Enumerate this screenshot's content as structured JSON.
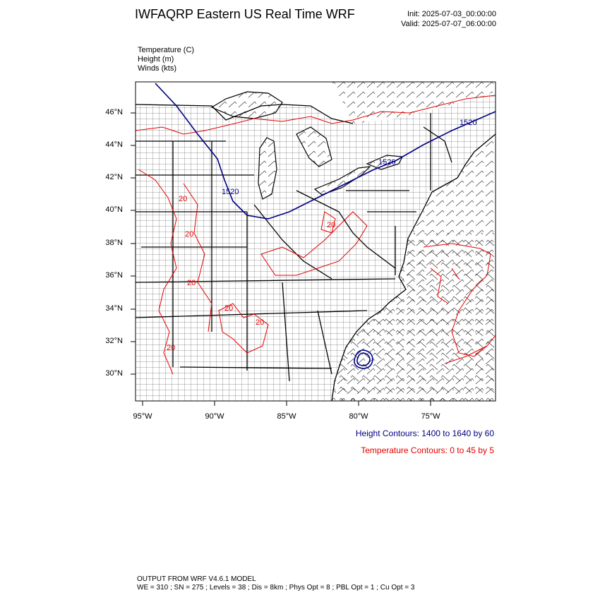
{
  "header": {
    "title": "IWFAQRP Eastern US Real Time WRF",
    "init": "Init: 2025-07-03_00:00:00",
    "valid": "Valid: 2025-07-07_06:00:00"
  },
  "fields": {
    "temperature": "Temperature   (C)",
    "height": "Height   (m)",
    "winds": "Winds   (kts)"
  },
  "axes": {
    "lat_labels": [
      "46°N",
      "44°N",
      "42°N",
      "40°N",
      "38°N",
      "36°N",
      "34°N",
      "32°N",
      "30°N"
    ],
    "lon_labels": [
      "95°W",
      "90°W",
      "85°W",
      "80°W",
      "75°W"
    ]
  },
  "contour_labels": {
    "height": [
      "1520",
      "1520",
      "1520"
    ],
    "temperature": [
      "20",
      "20",
      "20",
      "20",
      "20",
      "20",
      "20"
    ]
  },
  "legend": {
    "height": "Height Contours: 1400 to 1640 by 60",
    "temperature": "Temperature Contours: 0 to 45 by 5"
  },
  "colors": {
    "height": "#000080",
    "temperature": "#e60000",
    "boundaries": "#000000",
    "counties": "#333333"
  },
  "footer": {
    "line1": "OUTPUT FROM WRF V4.6.1 MODEL",
    "line2": "WE = 310 ; SN = 275 ; Levels = 38 ; Dis = 8km ; Phys Opt = 8 ; PBL Opt = 1 ; Cu Opt = 3"
  }
}
